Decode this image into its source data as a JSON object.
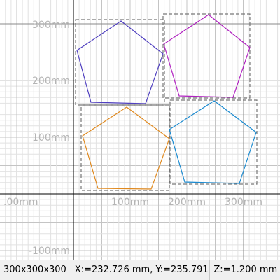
{
  "axis_labels": {
    "y": [
      "300mm",
      "200mm",
      "100mm",
      "-100mm"
    ],
    "x": [
      ".00mm",
      "100mm",
      "200mm",
      "300mm"
    ]
  },
  "status_bar": {
    "size": "300x300x300",
    "coordinates": "X:=232.726 mm, Y:=235.791 m",
    "z": "Z:=1.200 mm"
  }
}
